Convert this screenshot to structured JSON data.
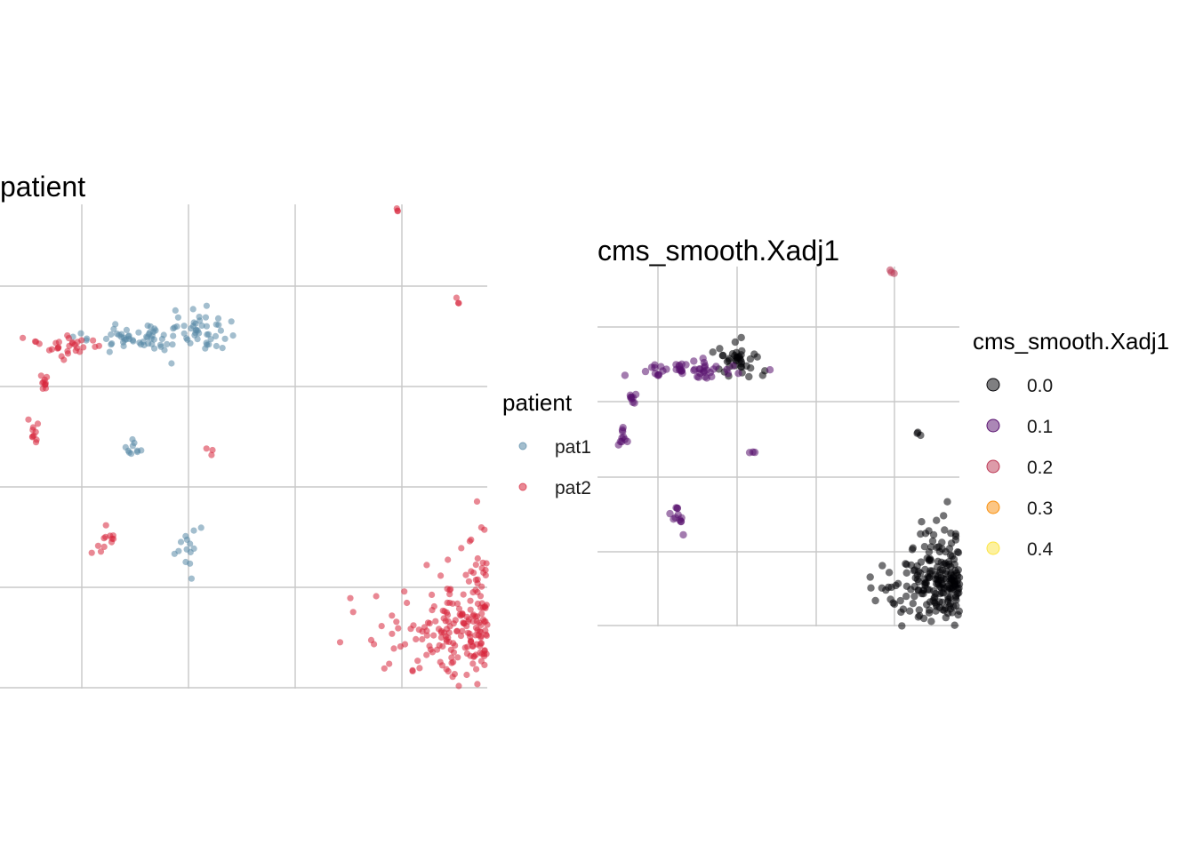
{
  "chart_data": [
    {
      "type": "scatter",
      "title": "patient",
      "xlabel": "",
      "ylabel": "",
      "grid": true,
      "legend": {
        "title": "patient",
        "position": "right",
        "entries": [
          {
            "label": "pat1",
            "color": "#5889A6"
          },
          {
            "label": "pat2",
            "color": "#D7263D"
          }
        ]
      },
      "series": [
        {
          "name": "pat1",
          "color": "#5889A6",
          "clusters": [
            {
              "x": 0.45,
              "y": 8.25,
              "sx": 0.15,
              "sy": 0.07,
              "n": 60
            },
            {
              "x": 7.2,
              "y": 5.85,
              "sx": 0.25,
              "sy": 0.12,
              "n": 50
            },
            {
              "x": 7.75,
              "y": 5.6,
              "sx": 0.15,
              "sy": 0.28,
              "n": 90
            },
            {
              "x": 8.1,
              "y": 6.2,
              "sx": 0.13,
              "sy": 0.22,
              "n": 60
            },
            {
              "x": 7.4,
              "y": 5.5,
              "sx": 0.2,
              "sy": 0.22,
              "n": 40
            },
            {
              "x": 1.6,
              "y": 5.5,
              "sx": 0.38,
              "sy": 0.06,
              "n": 60
            },
            {
              "x": 2.1,
              "y": 5.55,
              "sx": 0.14,
              "sy": 0.14,
              "n": 40
            },
            {
              "x": 1.5,
              "y": 4.4,
              "sx": 0.04,
              "sy": 0.06,
              "n": 10
            },
            {
              "x": 2.0,
              "y": 3.4,
              "sx": 0.06,
              "sy": 0.12,
              "n": 14
            },
            {
              "x": 5.0,
              "y": 3.3,
              "sx": 0.05,
              "sy": 0.1,
              "n": 8
            },
            {
              "x": 4.3,
              "y": 6.9,
              "sx": 0.02,
              "sy": 0.02,
              "n": 2
            }
          ]
        },
        {
          "name": "pat2",
          "color": "#D7263D",
          "clusters": [
            {
              "x": 4.95,
              "y": 2.55,
              "sx": 0.48,
              "sy": 0.22,
              "n": 420
            },
            {
              "x": 5.05,
              "y": 3.0,
              "sx": 0.3,
              "sy": 0.25,
              "n": 150
            },
            {
              "x": 5.5,
              "y": 3.6,
              "sx": 0.35,
              "sy": 0.15,
              "n": 120
            },
            {
              "x": 5.3,
              "y": 4.05,
              "sx": 0.14,
              "sy": 0.22,
              "n": 40
            },
            {
              "x": 6.35,
              "y": 2.95,
              "sx": 0.15,
              "sy": 0.13,
              "n": 100
            },
            {
              "x": 4.2,
              "y": 8.45,
              "sx": 0.12,
              "sy": 0.15,
              "n": 80
            },
            {
              "x": 0.85,
              "y": 5.4,
              "sx": 0.15,
              "sy": 0.05,
              "n": 30
            },
            {
              "x": 0.65,
              "y": 5.05,
              "sx": 0.03,
              "sy": 0.05,
              "n": 10
            },
            {
              "x": 0.55,
              "y": 4.55,
              "sx": 0.04,
              "sy": 0.07,
              "n": 10
            },
            {
              "x": 8.0,
              "y": 4.0,
              "sx": 0.09,
              "sy": 0.22,
              "n": 50
            },
            {
              "x": 1.25,
              "y": 3.45,
              "sx": 0.05,
              "sy": 0.09,
              "n": 12
            },
            {
              "x": 3.5,
              "y": 7.4,
              "sx": 0.02,
              "sy": 0.02,
              "n": 3
            },
            {
              "x": 3.05,
              "y": 7.0,
              "sx": 0.02,
              "sy": 0.02,
              "n": 3
            },
            {
              "x": 3.95,
              "y": 6.75,
              "sx": 0.02,
              "sy": 0.02,
              "n": 3
            },
            {
              "x": 4.55,
              "y": 5.85,
              "sx": 0.02,
              "sy": 0.02,
              "n": 3
            },
            {
              "x": 2.2,
              "y": 4.35,
              "sx": 0.02,
              "sy": 0.02,
              "n": 3
            }
          ]
        }
      ]
    },
    {
      "type": "scatter",
      "title": "cms_smooth.Xadj1",
      "xlabel": "",
      "ylabel": "",
      "grid": true,
      "legend": {
        "title": "cms_smooth.Xadj1",
        "position": "right",
        "entries": [
          {
            "label": "0.0",
            "color": "#000004"
          },
          {
            "label": "0.1",
            "color": "#57106E"
          },
          {
            "label": "0.2",
            "color": "#BC3754"
          },
          {
            "label": "0.3",
            "color": "#F98E09"
          },
          {
            "label": "0.4",
            "color": "#FCE440"
          }
        ]
      },
      "series": [
        {
          "name": "0.0",
          "color": "#000004",
          "clusters": [
            {
              "x": 4.95,
              "y": 2.55,
              "sx": 0.48,
              "sy": 0.22,
              "n": 420
            },
            {
              "x": 5.05,
              "y": 3.0,
              "sx": 0.3,
              "sy": 0.25,
              "n": 150
            },
            {
              "x": 5.5,
              "y": 3.6,
              "sx": 0.35,
              "sy": 0.15,
              "n": 100
            },
            {
              "x": 6.35,
              "y": 2.95,
              "sx": 0.15,
              "sy": 0.13,
              "n": 100
            },
            {
              "x": 0.45,
              "y": 8.25,
              "sx": 0.15,
              "sy": 0.07,
              "n": 60
            },
            {
              "x": 4.2,
              "y": 8.45,
              "sx": 0.12,
              "sy": 0.15,
              "n": 70
            },
            {
              "x": 7.75,
              "y": 5.6,
              "sx": 0.15,
              "sy": 0.28,
              "n": 80
            },
            {
              "x": 8.1,
              "y": 6.2,
              "sx": 0.13,
              "sy": 0.22,
              "n": 60
            },
            {
              "x": 7.2,
              "y": 5.85,
              "sx": 0.22,
              "sy": 0.12,
              "n": 40
            },
            {
              "x": 2.0,
              "y": 5.55,
              "sx": 0.15,
              "sy": 0.12,
              "n": 40
            },
            {
              "x": 4.3,
              "y": 4.6,
              "sx": 0.02,
              "sy": 0.02,
              "n": 3
            }
          ]
        },
        {
          "name": "0.1",
          "color": "#57106E",
          "clusters": [
            {
              "x": 1.3,
              "y": 5.45,
              "sx": 0.35,
              "sy": 0.06,
              "n": 50
            },
            {
              "x": 0.55,
              "y": 4.55,
              "sx": 0.04,
              "sy": 0.07,
              "n": 10
            },
            {
              "x": 1.25,
              "y": 3.45,
              "sx": 0.05,
              "sy": 0.09,
              "n": 12
            },
            {
              "x": 0.65,
              "y": 5.05,
              "sx": 0.03,
              "sy": 0.05,
              "n": 8
            },
            {
              "x": 7.4,
              "y": 5.4,
              "sx": 0.2,
              "sy": 0.25,
              "n": 40
            },
            {
              "x": 8.0,
              "y": 4.1,
              "sx": 0.09,
              "sy": 0.22,
              "n": 30
            },
            {
              "x": 5.3,
              "y": 4.05,
              "sx": 0.14,
              "sy": 0.22,
              "n": 20
            },
            {
              "x": 4.5,
              "y": 8.3,
              "sx": 0.15,
              "sy": 0.05,
              "n": 15
            },
            {
              "x": 3.05,
              "y": 7.0,
              "sx": 0.02,
              "sy": 0.02,
              "n": 3
            },
            {
              "x": 2.2,
              "y": 4.35,
              "sx": 0.02,
              "sy": 0.02,
              "n": 3
            }
          ]
        },
        {
          "name": "0.2",
          "color": "#BC3754",
          "clusters": [
            {
              "x": 3.5,
              "y": 7.4,
              "sx": 0.02,
              "sy": 0.02,
              "n": 3
            },
            {
              "x": 3.95,
              "y": 6.75,
              "sx": 0.02,
              "sy": 0.02,
              "n": 3
            },
            {
              "x": 5.3,
              "y": 3.2,
              "sx": 0.1,
              "sy": 0.1,
              "n": 6
            }
          ]
        },
        {
          "name": "0.3",
          "color": "#F98E09",
          "clusters": [
            {
              "x": 5.3,
              "y": 2.8,
              "sx": 0.05,
              "sy": 0.05,
              "n": 5
            }
          ]
        }
      ]
    }
  ]
}
